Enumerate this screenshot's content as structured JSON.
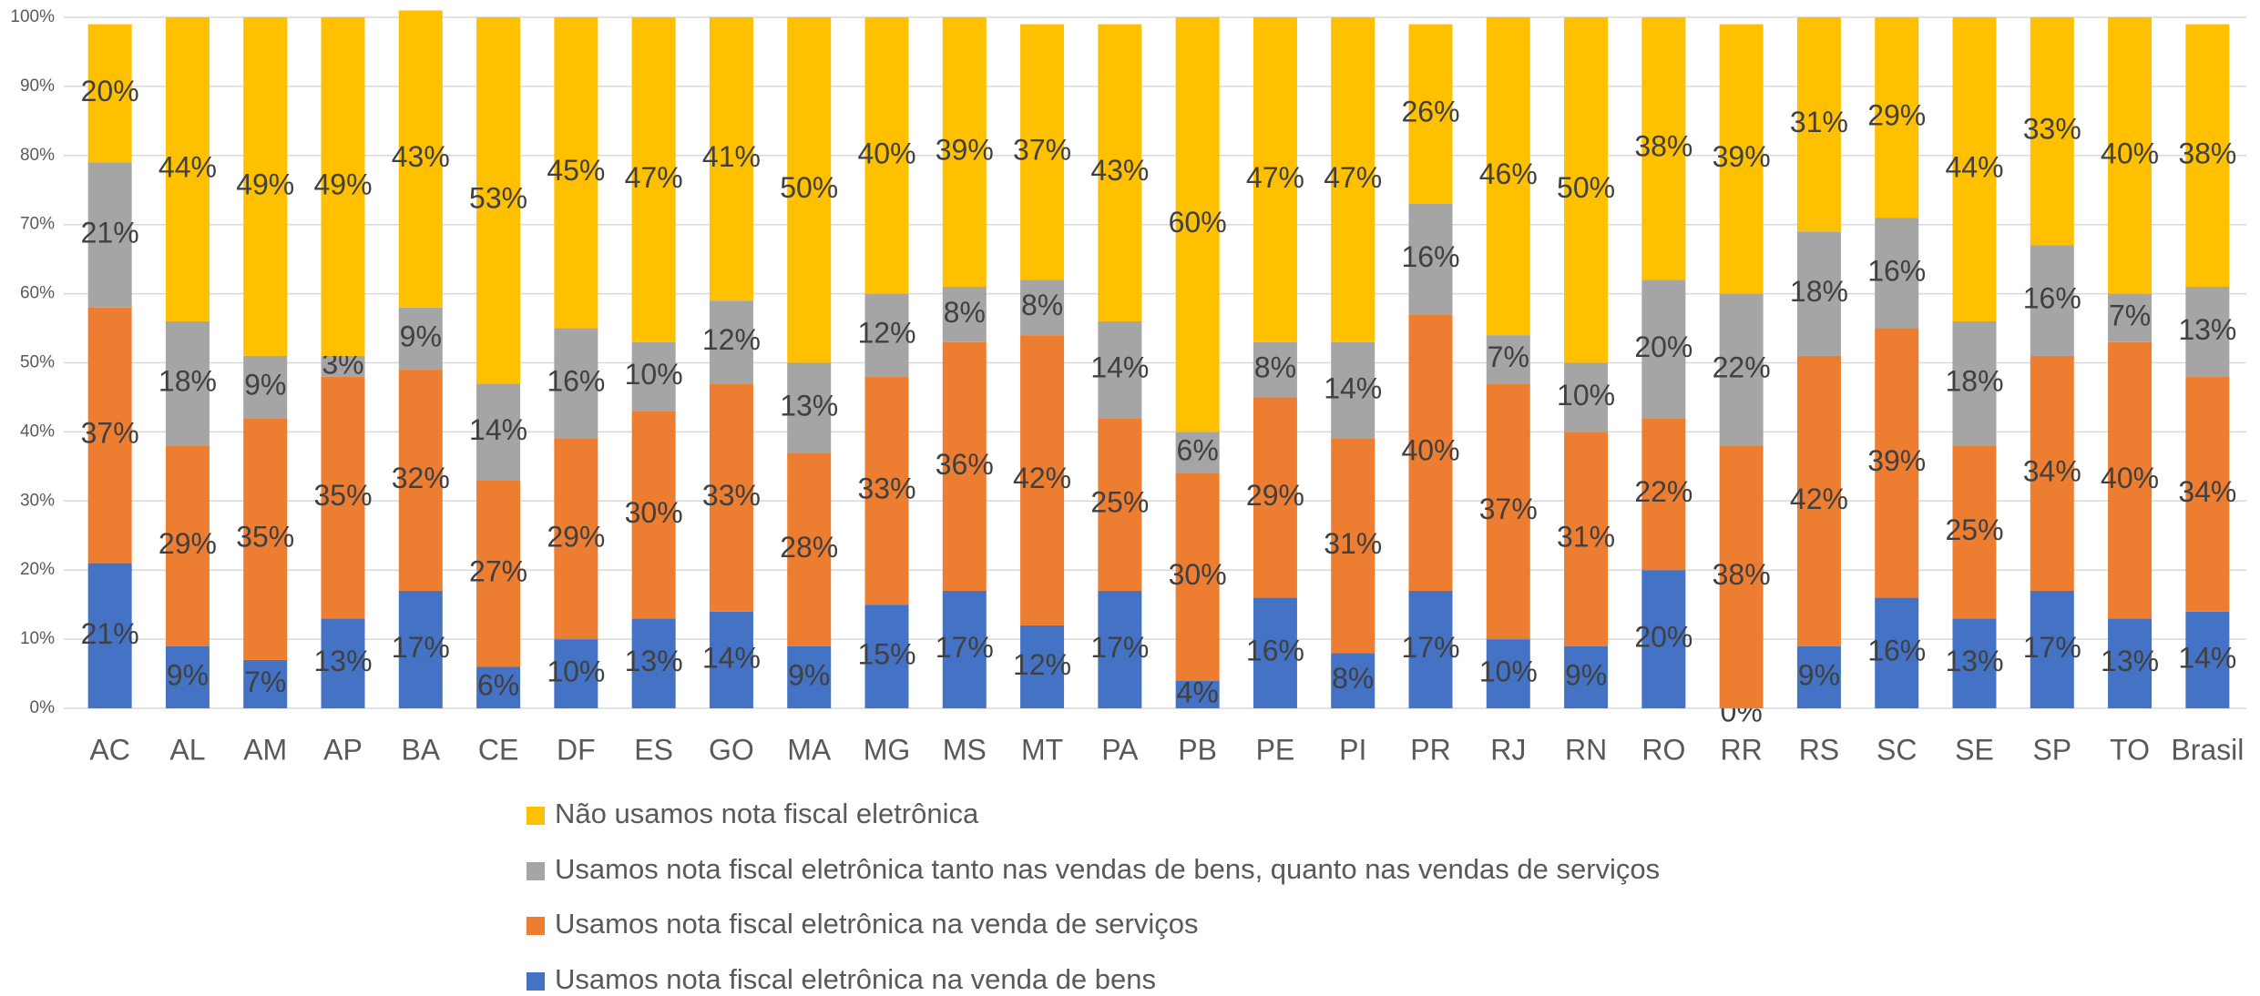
{
  "chart_data": {
    "type": "stacked_bar",
    "categories": [
      "AC",
      "AL",
      "AM",
      "AP",
      "BA",
      "CE",
      "DF",
      "ES",
      "GO",
      "MA",
      "MG",
      "MS",
      "MT",
      "PA",
      "PB",
      "PE",
      "PI",
      "PR",
      "RJ",
      "RN",
      "RO",
      "RR",
      "RS",
      "SC",
      "SE",
      "SP",
      "TO",
      "Brasil"
    ],
    "series": [
      {
        "name": "Usamos nota fiscal eletrônica na venda de bens",
        "color": "#4472c4",
        "values": [
          21,
          9,
          7,
          13,
          17,
          6,
          10,
          13,
          14,
          9,
          15,
          17,
          12,
          17,
          4,
          16,
          8,
          17,
          10,
          9,
          20,
          0,
          9,
          16,
          13,
          17,
          13,
          14
        ],
        "value_labels": [
          "21%",
          "9%",
          "7%",
          "13%",
          "17%",
          "6%",
          "10%",
          "13%",
          "14%",
          "9%",
          "15%",
          "17%",
          "12%",
          "17%",
          "4%",
          "16%",
          "8%",
          "17%",
          "10%",
          "9%",
          "20%",
          "0%",
          "9%",
          "16%",
          "13%",
          "17%",
          "13%",
          "14%"
        ]
      },
      {
        "name": "Usamos nota fiscal eletrônica na venda de serviços",
        "color": "#ed7d31",
        "values": [
          37,
          29,
          35,
          35,
          32,
          27,
          29,
          30,
          33,
          28,
          33,
          36,
          42,
          25,
          30,
          29,
          31,
          40,
          37,
          31,
          22,
          38,
          42,
          39,
          25,
          34,
          40,
          34
        ],
        "value_labels": [
          "37%",
          "29%",
          "35%",
          "35%",
          "32%",
          "27%",
          "29%",
          "30%",
          "33%",
          "28%",
          "33%",
          "36%",
          "42%",
          "25%",
          "30%",
          "29%",
          "31%",
          "40%",
          "37%",
          "31%",
          "22%",
          "38%",
          "42%",
          "39%",
          "25%",
          "34%",
          "40%",
          "34%"
        ]
      },
      {
        "name": "Usamos nota fiscal eletrônica tanto nas vendas de bens, quanto nas vendas de serviços",
        "color": "#a5a5a5",
        "values": [
          21,
          18,
          9,
          3,
          9,
          14,
          16,
          10,
          12,
          13,
          12,
          8,
          8,
          14,
          6,
          8,
          14,
          16,
          7,
          10,
          20,
          22,
          18,
          16,
          18,
          16,
          7,
          13
        ],
        "value_labels": [
          "21%",
          "18%",
          "9%",
          "3%",
          "9%",
          "14%",
          "16%",
          "10%",
          "12%",
          "13%",
          "12%",
          "8%",
          "8%",
          "14%",
          "6%",
          "8%",
          "14%",
          "16%",
          "7%",
          "10%",
          "20%",
          "22%",
          "18%",
          "16%",
          "18%",
          "16%",
          "7%",
          "13%"
        ]
      },
      {
        "name": "Não usamos nota fiscal eletrônica",
        "color": "#ffc000",
        "values": [
          20,
          44,
          49,
          49,
          43,
          53,
          45,
          47,
          41,
          50,
          40,
          39,
          37,
          43,
          60,
          47,
          47,
          26,
          46,
          50,
          38,
          39,
          31,
          29,
          44,
          33,
          40,
          38
        ],
        "value_labels": [
          "20%",
          "44%",
          "49%",
          "49%",
          "43%",
          "53%",
          "45%",
          "47%",
          "41%",
          "50%",
          "40%",
          "39%",
          "37%",
          "43%",
          "60%",
          "47%",
          "47%",
          "26%",
          "46%",
          "50%",
          "38%",
          "39%",
          "31%",
          "29%",
          "44%",
          "33%",
          "40%",
          "38%"
        ]
      }
    ],
    "ylim": [
      0,
      100
    ],
    "yticks": [
      {
        "value": 0,
        "label": "0%"
      },
      {
        "value": 10,
        "label": "10%"
      },
      {
        "value": 20,
        "label": "20%"
      },
      {
        "value": 30,
        "label": "30%"
      },
      {
        "value": 40,
        "label": "40%"
      },
      {
        "value": 50,
        "label": "50%"
      },
      {
        "value": 60,
        "label": "60%"
      },
      {
        "value": 70,
        "label": "70%"
      },
      {
        "value": 80,
        "label": "80%"
      },
      {
        "value": 90,
        "label": "90%"
      },
      {
        "value": 100,
        "label": "100%"
      }
    ],
    "grid": true,
    "legend": "bottom"
  }
}
